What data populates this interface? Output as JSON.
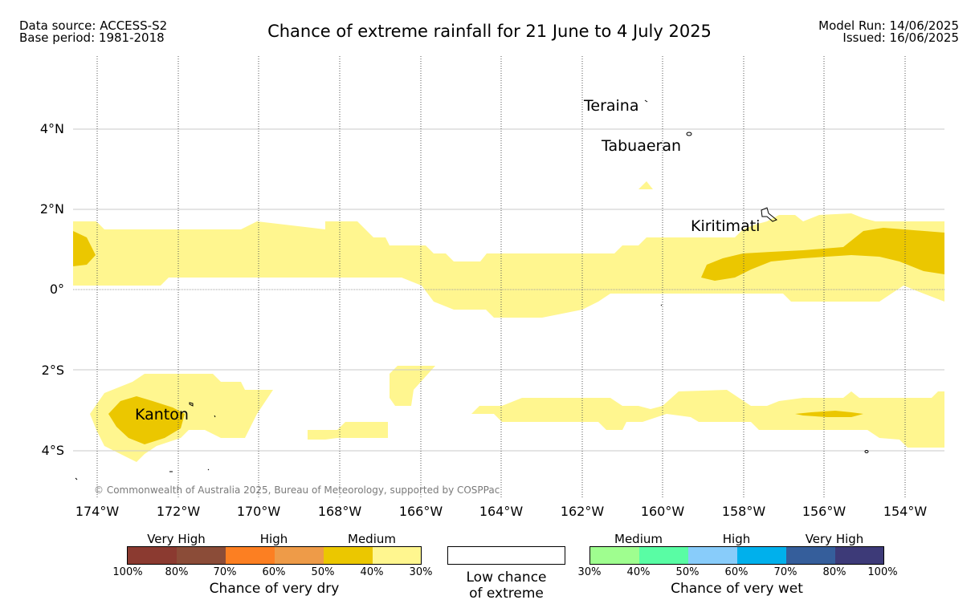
{
  "header": {
    "data_source": "Data source: ACCESS-S2",
    "base_period": "Base period: 1981-2018",
    "title": "Chance of extreme rainfall for 21 June to 4 July 2025",
    "model_run": "Model Run: 14/06/2025",
    "issued": "Issued: 16/06/2025"
  },
  "map": {
    "lat_labels": [
      "4°N",
      "2°N",
      "0°",
      "2°S",
      "4°S"
    ],
    "lon_labels": [
      "174°W",
      "172°W",
      "170°W",
      "168°W",
      "166°W",
      "164°W",
      "162°W",
      "160°W",
      "158°W",
      "156°W",
      "154°W"
    ],
    "places": {
      "teraina": "Teraina",
      "tabuaeran": "Tabuaeran",
      "kiritimati": "Kiritimati",
      "kanton": "Kanton"
    },
    "copyright": "© Commonwealth of Australia 2025, Bureau of Meteorology, supported by COSPPac",
    "colors": {
      "medium_dry": "#fff68f",
      "high_dry": "#ebc700",
      "coastline": "#000000",
      "gridline": "#c8c8c8"
    }
  },
  "legend": {
    "dry": {
      "categories": [
        "Very High",
        "High",
        "Medium"
      ],
      "colors": [
        "#8b3a30",
        "#8b4c38",
        "#fc7f22",
        "#ee9b48",
        "#ebc700",
        "#fff68f"
      ],
      "ticks": [
        "100%",
        "80%",
        "70%",
        "60%",
        "50%",
        "40%",
        "30%"
      ],
      "caption": "Chance of very dry"
    },
    "low": {
      "line1": "Low chance",
      "line2": "of extreme"
    },
    "wet": {
      "categories": [
        "Medium",
        "High",
        "Very High"
      ],
      "colors": [
        "#9ffe8f",
        "#59fda4",
        "#88ccfa",
        "#00b0ec",
        "#355e9b",
        "#3d3a78"
      ],
      "ticks": [
        "30%",
        "40%",
        "50%",
        "60%",
        "70%",
        "80%",
        "100%"
      ],
      "caption": "Chance of very wet"
    }
  }
}
